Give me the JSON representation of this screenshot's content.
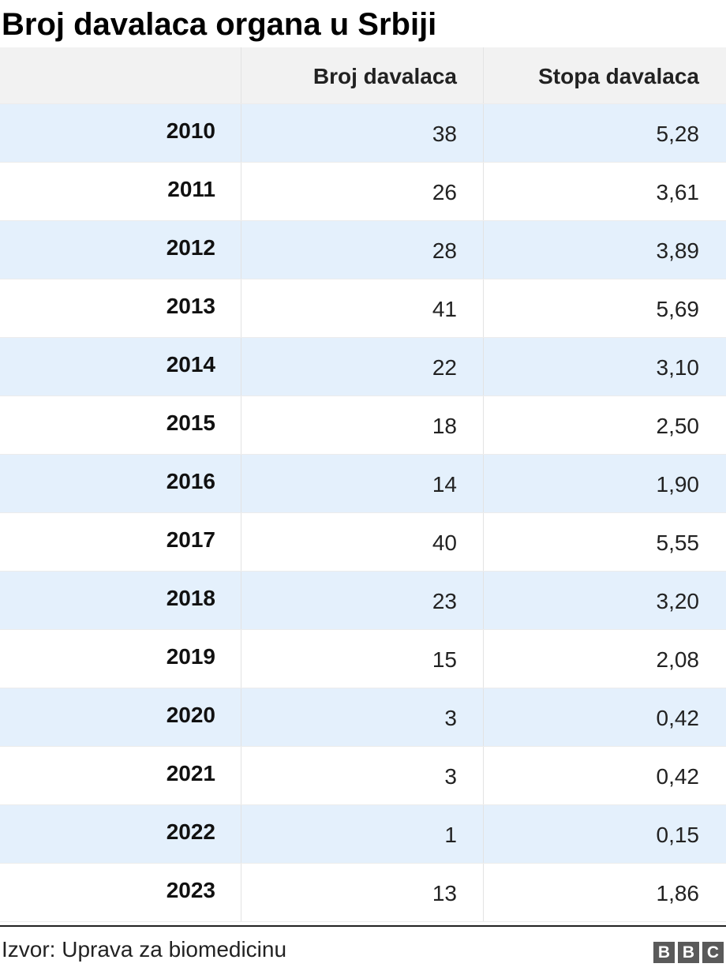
{
  "title": "Broj davalaca organa u Srbiji",
  "chart_data": {
    "type": "table",
    "title": "Broj davalaca organa u Srbiji",
    "columns": [
      "",
      "Broj davalaca",
      "Stopa davalaca"
    ],
    "rows": [
      {
        "year": "2010",
        "broj": "38",
        "stopa": "5,28"
      },
      {
        "year": "2011",
        "broj": "26",
        "stopa": "3,61"
      },
      {
        "year": "2012",
        "broj": "28",
        "stopa": "3,89"
      },
      {
        "year": "2013",
        "broj": "41",
        "stopa": "5,69"
      },
      {
        "year": "2014",
        "broj": "22",
        "stopa": "3,10"
      },
      {
        "year": "2015",
        "broj": "18",
        "stopa": "2,50"
      },
      {
        "year": "2016",
        "broj": "14",
        "stopa": "1,90"
      },
      {
        "year": "2017",
        "broj": "40",
        "stopa": "5,55"
      },
      {
        "year": "2018",
        "broj": "23",
        "stopa": "3,20"
      },
      {
        "year": "2019",
        "broj": "15",
        "stopa": "2,08"
      },
      {
        "year": "2020",
        "broj": "3",
        "stopa": "0,42"
      },
      {
        "year": "2021",
        "broj": "3",
        "stopa": "0,42"
      },
      {
        "year": "2022",
        "broj": "1",
        "stopa": "0,15"
      },
      {
        "year": "2023",
        "broj": "13",
        "stopa": "1,86"
      }
    ]
  },
  "footer": {
    "source": "Izvor: Uprava za biomedicinu",
    "logo_letters": [
      "B",
      "B",
      "C"
    ]
  },
  "colors": {
    "header_bg": "#f2f2f2",
    "stripe_bg": "#e4f0fc",
    "row_bg": "#ffffff",
    "logo_bg": "#5a5a5a"
  }
}
